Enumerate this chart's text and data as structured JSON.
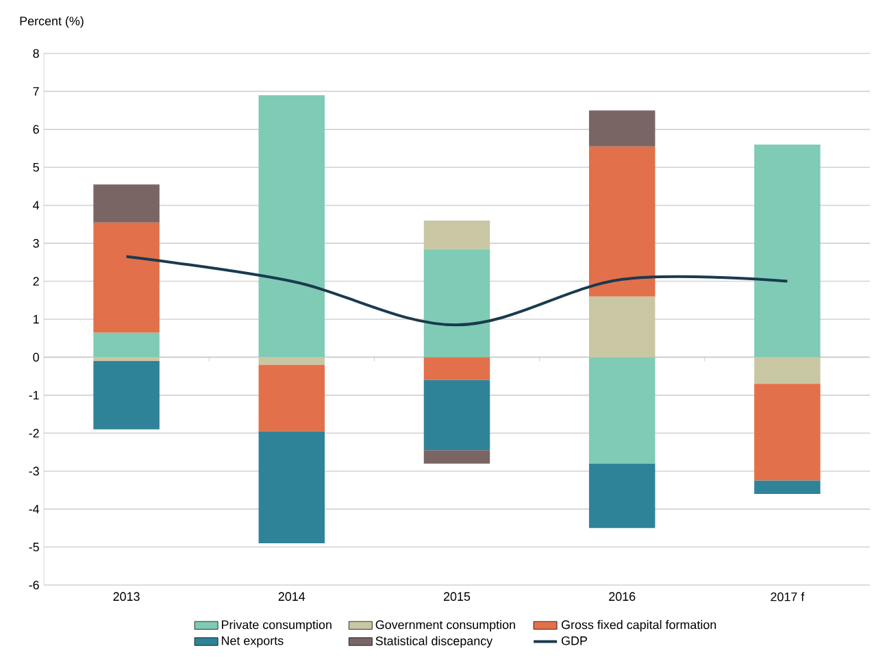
{
  "chart_data": {
    "type": "bar",
    "stacked": true,
    "ylabel": "Percent (%)",
    "categories": [
      "2013",
      "2014",
      "2015",
      "2016",
      "2017 f"
    ],
    "series": [
      {
        "name": "Private consumption",
        "color": "#7fcbb5",
        "values": [
          0.65,
          6.9,
          2.85,
          -2.8,
          5.6
        ]
      },
      {
        "name": "Government consumption",
        "color": "#c9c7a3",
        "values": [
          -0.1,
          -0.2,
          0.75,
          1.6,
          -0.7
        ]
      },
      {
        "name": "Gross fixed capital formation",
        "color": "#e2704a",
        "values": [
          2.9,
          -1.75,
          -0.6,
          3.95,
          -2.55
        ]
      },
      {
        "name": "Net exports",
        "color": "#2e8399",
        "values": [
          -1.8,
          -2.95,
          -1.85,
          -1.7,
          -0.35
        ]
      },
      {
        "name": "Statistical discepancy",
        "color": "#7a6565",
        "values": [
          1.0,
          null,
          -0.35,
          0.95,
          null
        ]
      },
      {
        "name": "GDP",
        "type": "line",
        "color": "#1a3a4e",
        "values": [
          2.65,
          2.0,
          0.85,
          2.05,
          2.0
        ]
      }
    ],
    "ylim": [
      -6,
      8
    ],
    "yticks": [
      -6,
      -5,
      -4,
      -3,
      -2,
      -1,
      0,
      1,
      2,
      3,
      4,
      5,
      6,
      7,
      8
    ],
    "grid": "y",
    "legend": "bottom"
  }
}
